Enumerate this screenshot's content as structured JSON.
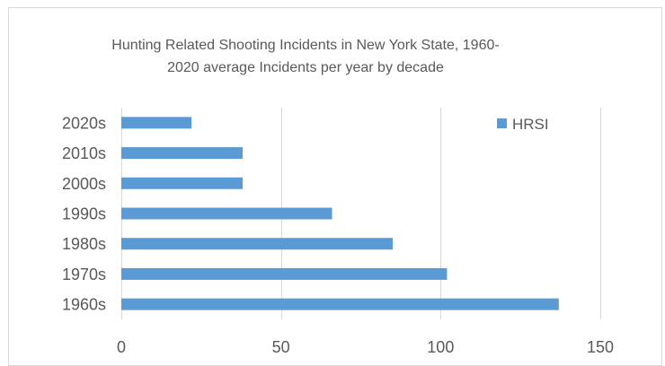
{
  "chart_data": {
    "type": "bar",
    "orientation": "horizontal",
    "title": "Hunting Related Shooting Incidents in New York State, 1960-2020 average Incidents per year by decade",
    "title_lines": [
      "Hunting Related Shooting Incidents in New York State, 1960-",
      "2020 average Incidents per year by decade"
    ],
    "categories": [
      "1960s",
      "1970s",
      "1980s",
      "1990s",
      "2000s",
      "2010s",
      "2020s"
    ],
    "series": [
      {
        "name": "HRSI",
        "color": "#5b9bd5",
        "values": [
          137,
          102,
          85,
          66,
          38,
          38,
          22
        ]
      }
    ],
    "xlim": [
      0,
      150
    ],
    "xticks": [
      0,
      50,
      100,
      150
    ],
    "grid": true,
    "legend": "top-right"
  }
}
